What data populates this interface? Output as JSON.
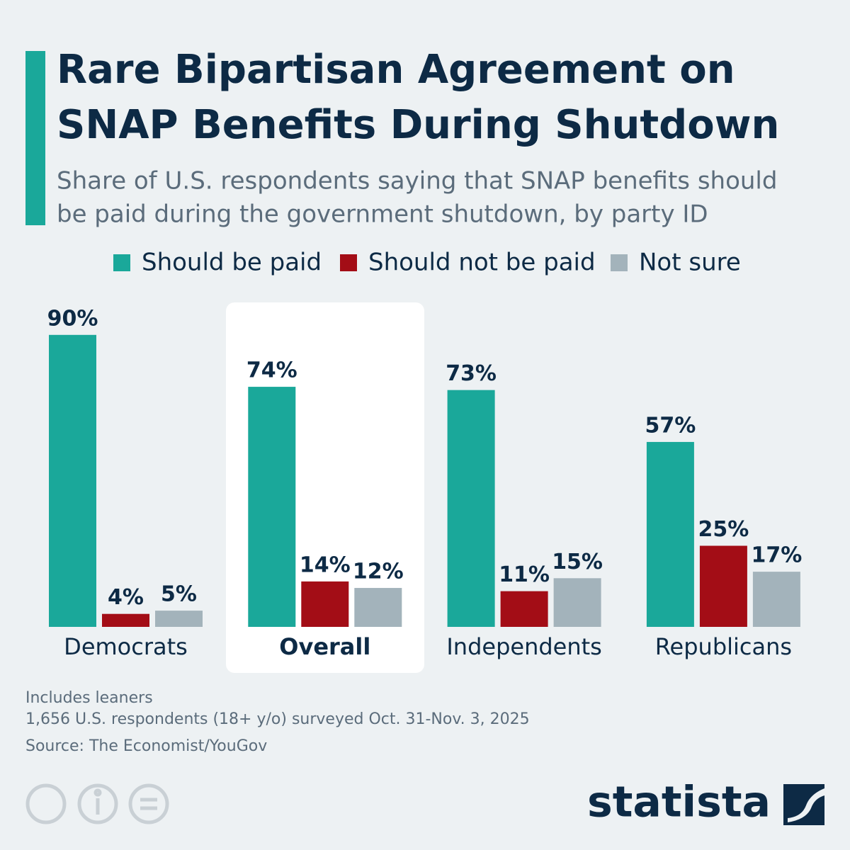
{
  "chart_data": {
    "type": "bar",
    "title": [
      "Rare Bipartisan Agreement on",
      "SNAP Benefits During Shutdown"
    ],
    "subtitle": [
      "Share of U.S. respondents saying that SNAP benefits should",
      "be paid during the government shutdown, by party ID"
    ],
    "categories": [
      "Democrats",
      "Overall",
      "Independents",
      "Republicans"
    ],
    "series": [
      {
        "name": "Should be paid",
        "color": "#1aa89a",
        "values": [
          90,
          74,
          73,
          57
        ],
        "value_labels": [
          "90%",
          "74%",
          "73%",
          "57%"
        ]
      },
      {
        "name": "Should not be paid",
        "color": "#a30d16",
        "values": [
          4,
          14,
          11,
          25
        ],
        "value_labels": [
          "4%",
          "14%",
          "11%",
          "25%"
        ]
      },
      {
        "name": "Not sure",
        "color": "#a3b3bb",
        "values": [
          5,
          12,
          15,
          17
        ],
        "value_labels": [
          "5%",
          "12%",
          "15%",
          "17%"
        ]
      }
    ],
    "notes": [
      "Includes leaners",
      "1,656 U.S. respondents (18+ y/o) surveyed Oct. 31-Nov. 3, 2025"
    ],
    "source": "Source: The Economist/YouGov",
    "brand": "statista"
  }
}
